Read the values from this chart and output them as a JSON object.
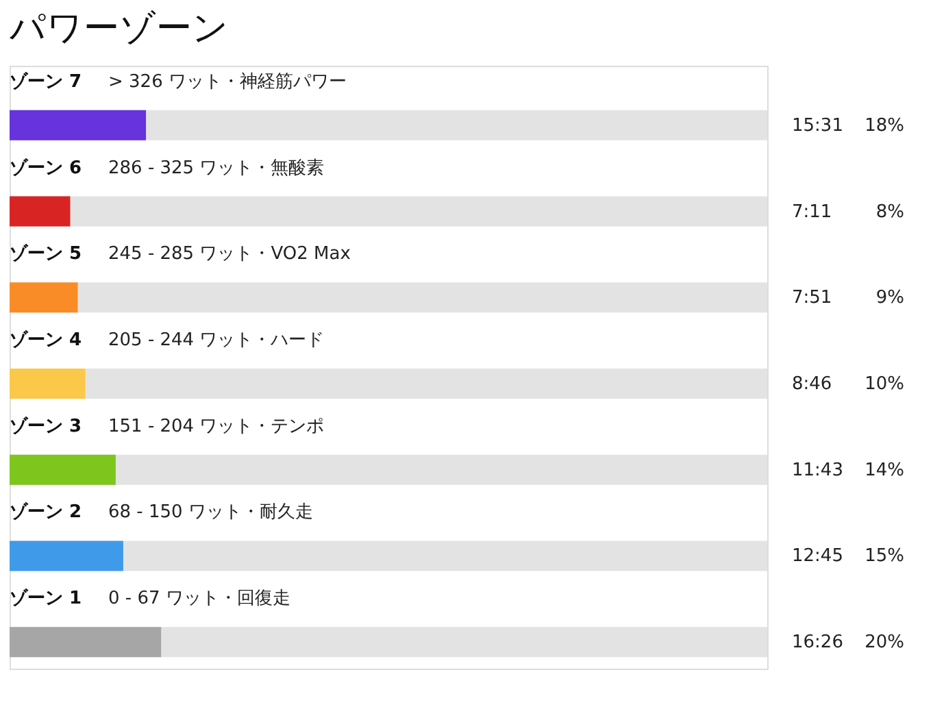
{
  "chart_data": {
    "type": "bar",
    "orientation": "horizontal",
    "title": "パワーゾーン",
    "categories": [
      "ゾーン 7",
      "ゾーン 6",
      "ゾーン 5",
      "ゾーン 4",
      "ゾーン 3",
      "ゾーン 2",
      "ゾーン 1"
    ],
    "values": [
      18,
      8,
      9,
      10,
      14,
      15,
      20
    ],
    "colors": [
      "#6633dd",
      "#d92424",
      "#fa8c28",
      "#fcc84a",
      "#7ec51e",
      "#3f9be9",
      "#a6a6a6"
    ],
    "value_labels": [
      "18%",
      "8%",
      "9%",
      "10%",
      "14%",
      "15%",
      "20%"
    ],
    "xlim": [
      0,
      100
    ],
    "annotations": [
      "> 326 ワット・神経筋パワー",
      "286 - 325 ワット・無酸素",
      "245 - 285 ワット・VO2 Max",
      "205 - 244 ワット・ハード",
      "151 - 204 ワット・テンポ",
      "68 - 150 ワット・耐久走",
      "0 - 67 ワット・回復走",
      "15:31",
      "7:11",
      "7:51",
      "8:46",
      "11:43",
      "12:45",
      "16:26"
    ]
  }
}
